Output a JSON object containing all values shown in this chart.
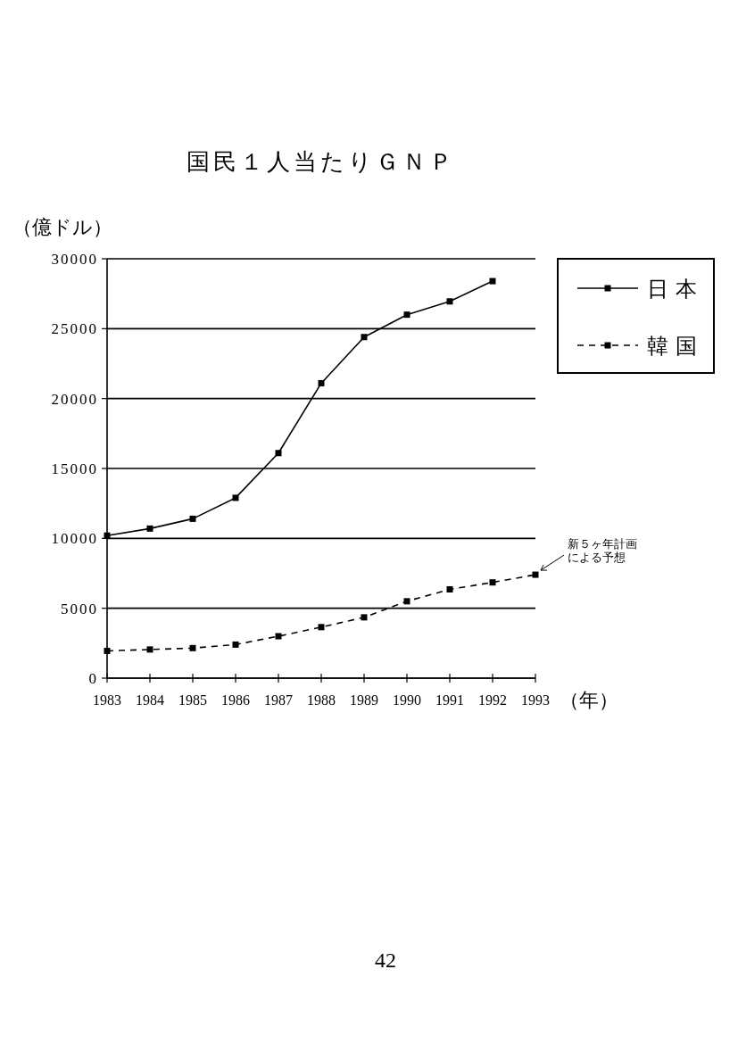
{
  "chart_data": {
    "type": "line",
    "title": "国民１人当たりＧＮＰ",
    "ylabel": "（億ドル）",
    "xlabel": "（年）",
    "x": [
      1983,
      1984,
      1985,
      1986,
      1987,
      1988,
      1989,
      1990,
      1991,
      1992,
      1993
    ],
    "xlim": [
      1983,
      1993
    ],
    "xticks": [
      1983,
      1984,
      1985,
      1986,
      1987,
      1988,
      1989,
      1990,
      1991,
      1992,
      1993
    ],
    "ylim": [
      0,
      30000
    ],
    "yticks": [
      0,
      5000,
      10000,
      15000,
      20000,
      25000,
      30000
    ],
    "grid": "y",
    "legend": "right",
    "marker": "square",
    "series": [
      {
        "name": "日本",
        "color": "#000000",
        "line_style": "solid",
        "values": [
          10200,
          10700,
          11400,
          12900,
          16100,
          21100,
          24400,
          26000,
          26950,
          28400,
          null
        ]
      },
      {
        "name": "韓国",
        "color": "#000000",
        "line_style": "dashed",
        "values": [
          1950,
          2050,
          2150,
          2400,
          3000,
          3650,
          4350,
          5500,
          6350,
          6850,
          7400
        ]
      }
    ],
    "annotations": [
      {
        "text": "新５ヶ年計画による予想",
        "x": 1993,
        "y": 7400
      },
      "42"
    ]
  }
}
